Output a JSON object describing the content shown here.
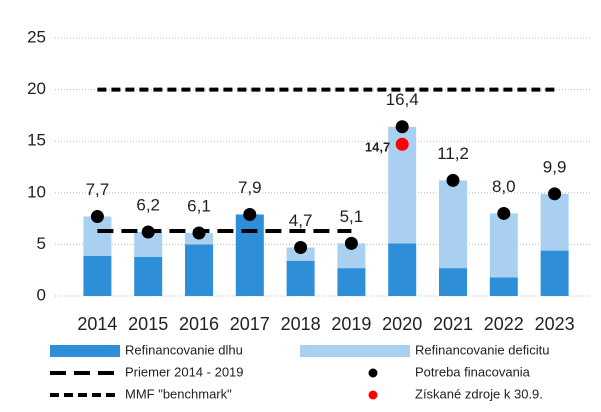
{
  "chart_data": {
    "type": "bar",
    "categories": [
      "2014",
      "2015",
      "2016",
      "2017",
      "2018",
      "2019",
      "2020",
      "2021",
      "2022",
      "2023"
    ],
    "ylim": [
      0,
      25
    ],
    "yticks": [
      0,
      5,
      10,
      15,
      20,
      25
    ],
    "grid": true,
    "stacked": true,
    "series": [
      {
        "name": "Refinancovanie dlhu",
        "type": "bar",
        "color": "#2e8fd8",
        "values": [
          3.9,
          3.8,
          5.0,
          7.9,
          3.4,
          2.7,
          5.1,
          2.7,
          1.8,
          4.4
        ]
      },
      {
        "name": "Refinancovanie deficitu",
        "type": "bar",
        "color": "#a9d0f0",
        "values": [
          3.8,
          2.4,
          1.1,
          0,
          1.3,
          2.4,
          11.3,
          8.5,
          6.2,
          5.5
        ]
      },
      {
        "name": "Priemer 2014 - 2019",
        "type": "line",
        "color": "#000000",
        "dash": "16 8",
        "values": [
          6.3,
          6.3,
          6.3,
          6.3,
          6.3,
          6.3,
          null,
          null,
          null,
          null
        ]
      },
      {
        "name": "Potreba finacovania",
        "type": "scatter",
        "color": "#000000",
        "values": [
          7.7,
          6.2,
          6.1,
          7.9,
          4.7,
          5.1,
          16.4,
          11.2,
          8.0,
          9.9
        ],
        "value_labels": [
          "7,7",
          "6,2",
          "6,1",
          "7,9",
          "4,7",
          "5,1",
          "16,4",
          "11,2",
          "8,0",
          "9,9"
        ]
      },
      {
        "name": "MMF \"benchmark\"",
        "type": "line",
        "color": "#000000",
        "dash": "9 5",
        "values": [
          20,
          20,
          20,
          20,
          20,
          20,
          20,
          20,
          20,
          20
        ]
      },
      {
        "name": "Získané zdroje k 30.9.",
        "type": "scatter",
        "color": "#ff0000",
        "values": [
          null,
          null,
          null,
          null,
          null,
          null,
          14.7,
          null,
          null,
          null
        ],
        "value_labels": [
          null,
          null,
          null,
          null,
          null,
          null,
          "14,7",
          null,
          null,
          null
        ]
      }
    ]
  }
}
